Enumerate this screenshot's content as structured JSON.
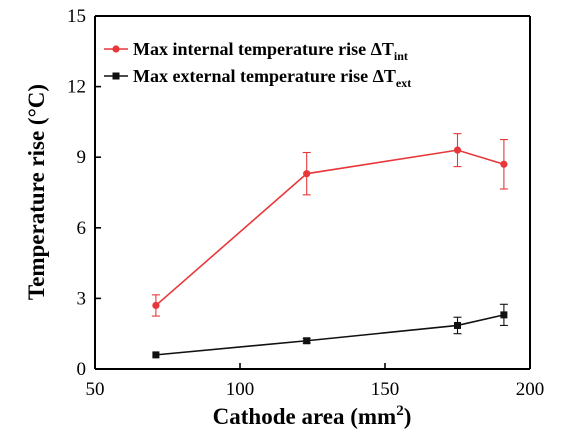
{
  "chart_data": {
    "type": "line",
    "xlabel": "Cathode area (mm",
    "xlabel_sup": "2",
    "xlabel_end": ")",
    "ylabel": "Temperature rise (°C)",
    "xlim": [
      50,
      200
    ],
    "ylim": [
      0,
      15
    ],
    "xticks": [
      50,
      100,
      150,
      200
    ],
    "yticks": [
      0,
      3,
      6,
      9,
      12,
      15
    ],
    "grid": false,
    "legend_position": "top",
    "series": [
      {
        "name_main": "Max internal temperature rise ΔT",
        "name_sub": "int",
        "color": "#e8373a",
        "marker": "circle",
        "x": [
          71,
          123,
          175,
          191
        ],
        "y": [
          2.7,
          8.3,
          9.3,
          8.7
        ],
        "err": [
          0.45,
          0.9,
          0.7,
          1.05
        ]
      },
      {
        "name_main": "Max external temperature rise ΔT",
        "name_sub": "ext",
        "color": "#111111",
        "marker": "square",
        "x": [
          71,
          123,
          175,
          191
        ],
        "y": [
          0.6,
          1.2,
          1.85,
          2.3
        ],
        "err": [
          0.0,
          0.1,
          0.35,
          0.45
        ]
      }
    ]
  }
}
